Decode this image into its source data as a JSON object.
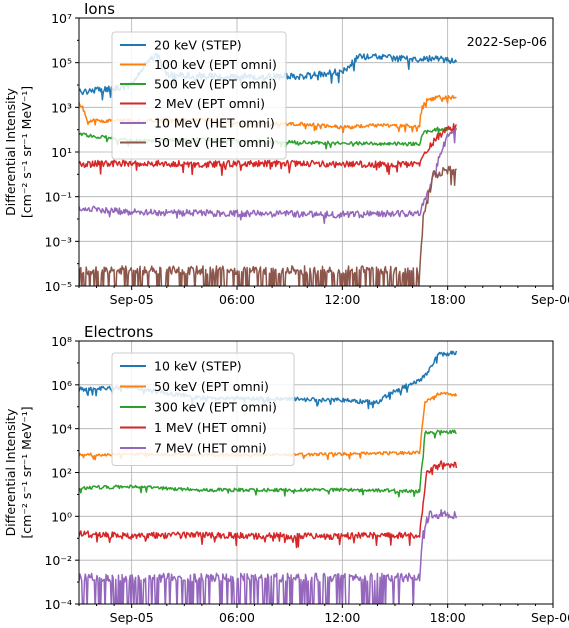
{
  "chart_data": [
    {
      "type": "line",
      "title": "Ions",
      "annotation": "2022-Sep-06",
      "ylabel": [
        "Differential Intensity",
        "[cm⁻² s⁻¹ sr⁻¹ MeV⁻¹]"
      ],
      "yscale": "log",
      "ylim_exp": [
        -5,
        7
      ],
      "ytick_exps": [
        -5,
        -3,
        -1,
        1,
        3,
        5,
        7
      ],
      "x_unit": "hours since 2022-09-05 00:00 UT",
      "xlim": [
        -3,
        24
      ],
      "xticks": [
        {
          "x": 0,
          "label": "Sep-05"
        },
        {
          "x": 6,
          "label": "06:00"
        },
        {
          "x": 12,
          "label": "12:00"
        },
        {
          "x": 18,
          "label": "18:00"
        },
        {
          "x": 24,
          "label": "Sep-06"
        }
      ],
      "grid": true,
      "legend_position": "upper-left",
      "series": [
        {
          "name": "20 keV (STEP)",
          "color": "#1f77b4",
          "x": [
            -3,
            -0.5,
            0,
            1,
            1.5,
            2,
            4,
            6,
            10,
            12,
            13,
            14,
            15,
            16,
            17,
            18,
            18.5
          ],
          "y_log10": [
            3.7,
            3.9,
            4.0,
            5.2,
            5.3,
            4.5,
            4.4,
            4.35,
            4.4,
            4.6,
            5.3,
            5.25,
            5.2,
            5.15,
            5.2,
            5.1,
            5.0
          ],
          "noise": 0.15,
          "dropouts": false
        },
        {
          "name": "100 keV (EPT omni)",
          "color": "#ff7f0e",
          "x": [
            -3,
            -2.8,
            -2.5,
            2,
            4,
            6,
            10,
            12,
            14,
            16.4,
            16.5,
            16.8,
            17.5,
            18.5
          ],
          "y_log10": [
            3.2,
            3.0,
            2.4,
            2.4,
            2.45,
            2.3,
            2.25,
            2.1,
            2.2,
            2.15,
            3.0,
            3.3,
            3.45,
            3.45
          ],
          "noise": 0.08,
          "dropouts": false
        },
        {
          "name": "500 keV (EPT omni)",
          "color": "#2ca02c",
          "x": [
            -3,
            0,
            4,
            8,
            12,
            16.4,
            16.6,
            17.5,
            18.5
          ],
          "y_log10": [
            1.8,
            1.5,
            1.55,
            1.45,
            1.4,
            1.35,
            1.85,
            2.05,
            2.0
          ],
          "noise": 0.08,
          "dropouts": false
        },
        {
          "name": "2 MeV (EPT omni)",
          "color": "#d62728",
          "x": [
            -3,
            0,
            4,
            8,
            12,
            16.4,
            16.7,
            17.3,
            18,
            18.5
          ],
          "y_log10": [
            0.45,
            0.5,
            0.45,
            0.5,
            0.45,
            0.45,
            0.9,
            1.6,
            2.0,
            2.2
          ],
          "noise": 0.15,
          "dropouts": false
        },
        {
          "name": "10 MeV (HET omni)",
          "color": "#9467bd",
          "x": [
            -3,
            0,
            6,
            12,
            16.4,
            17,
            17.5,
            18,
            18.5
          ],
          "y_log10": [
            -1.5,
            -1.7,
            -1.75,
            -1.8,
            -1.75,
            -0.5,
            0.8,
            1.7,
            1.95
          ],
          "noise": 0.15,
          "dropouts": false
        },
        {
          "name": "50 MeV (HET omni)",
          "color": "#8c564b",
          "x": [
            -3,
            16.4,
            16.6,
            17.2,
            18,
            18.5
          ],
          "y_log10": [
            -4.3,
            -4.3,
            -2.0,
            0.0,
            0.15,
            0.2
          ],
          "noise": 0.2,
          "dropouts": true,
          "dropout_until": 16.4
        }
      ]
    },
    {
      "type": "line",
      "title": "Electrons",
      "ylabel": [
        "Differential Intensity",
        "[cm⁻² s⁻¹ sr⁻¹ MeV⁻¹]"
      ],
      "yscale": "log",
      "ylim_exp": [
        -4,
        8
      ],
      "ytick_exps": [
        -4,
        -2,
        0,
        2,
        4,
        6,
        8
      ],
      "x_unit": "hours since 2022-09-05 00:00 UT",
      "xlim": [
        -3,
        24
      ],
      "xticks": [
        {
          "x": 0,
          "label": "Sep-05"
        },
        {
          "x": 6,
          "label": "06:00"
        },
        {
          "x": 12,
          "label": "12:00"
        },
        {
          "x": 18,
          "label": "18:00"
        },
        {
          "x": 24,
          "label": "Sep-06"
        }
      ],
      "grid": true,
      "legend_position": "upper-left",
      "series": [
        {
          "name": "10 keV (STEP)",
          "color": "#1f77b4",
          "x": [
            -3,
            0,
            2,
            4,
            8,
            12,
            14,
            14.5,
            15.5,
            16.4,
            16.7,
            17.5,
            18.5
          ],
          "y_log10": [
            5.8,
            5.9,
            5.6,
            5.4,
            5.35,
            5.3,
            5.2,
            5.5,
            5.9,
            6.2,
            6.4,
            7.4,
            7.45
          ],
          "noise": 0.1,
          "dropouts": false
        },
        {
          "name": "50 keV (EPT omni)",
          "color": "#ff7f0e",
          "x": [
            -3,
            0,
            4,
            8,
            12,
            16.4,
            16.7,
            17.5,
            18.5
          ],
          "y_log10": [
            2.8,
            2.85,
            2.8,
            2.8,
            2.85,
            2.9,
            5.2,
            5.6,
            5.55
          ],
          "noise": 0.07,
          "dropouts": false
        },
        {
          "name": "300 keV (EPT omni)",
          "color": "#2ca02c",
          "x": [
            -3,
            0,
            4,
            8,
            12,
            16.4,
            16.7,
            17.5,
            18.5
          ],
          "y_log10": [
            1.3,
            1.35,
            1.2,
            1.2,
            1.2,
            1.15,
            3.8,
            3.85,
            3.85
          ],
          "noise": 0.08,
          "dropouts": false
        },
        {
          "name": "1 MeV (HET omni)",
          "color": "#d62728",
          "x": [
            -3,
            0,
            4,
            8,
            12,
            16.4,
            16.8,
            17.5,
            18.5
          ],
          "y_log10": [
            -0.8,
            -0.9,
            -0.85,
            -0.9,
            -0.9,
            -0.85,
            2.0,
            2.4,
            2.35
          ],
          "noise": 0.15,
          "dropouts": false
        },
        {
          "name": "7 MeV (HET omni)",
          "color": "#9467bd",
          "x": [
            -3,
            16.4,
            16.6,
            17,
            18.5
          ],
          "y_log10": [
            -2.8,
            -2.8,
            -0.5,
            0.1,
            0.1
          ],
          "noise": 0.2,
          "dropouts": true,
          "dropout_until": 16.4
        }
      ]
    }
  ]
}
